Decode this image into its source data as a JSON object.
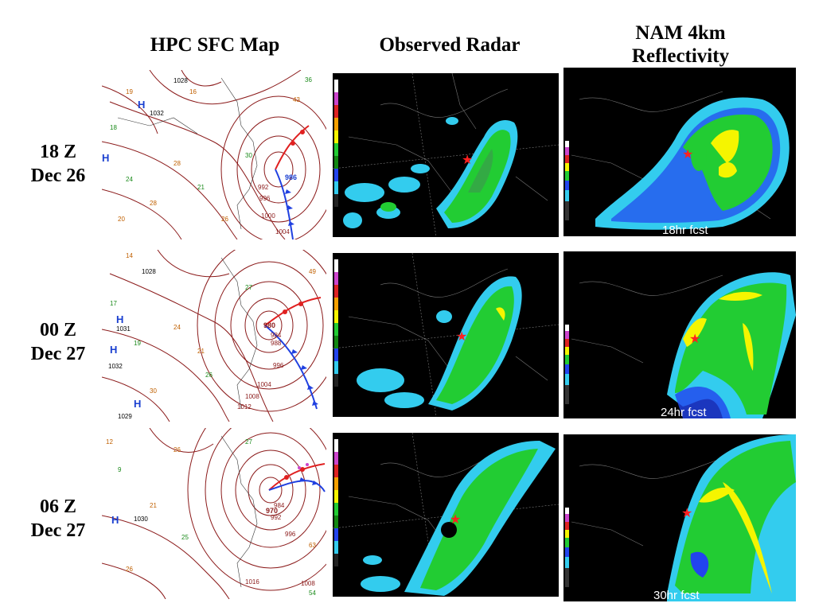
{
  "headers": {
    "sfc": "HPC SFC Map",
    "radar": "Observed Radar",
    "nam_line1": "NAM 4km",
    "nam_line2": "Reflectivity"
  },
  "rows": [
    {
      "time": "18 Z",
      "date": "Dec 26",
      "fcst": "18hr fcst",
      "sfc": {
        "low_pressure": "986",
        "isobars": [
          "992",
          "996",
          "1000",
          "1004"
        ],
        "highs": [
          "1028",
          "1032"
        ]
      }
    },
    {
      "time": "00 Z",
      "date": "Dec 27",
      "fcst": "24hr fcst",
      "sfc": {
        "low_pressure": "980",
        "isobars": [
          "984",
          "988",
          "996",
          "1004",
          "1008",
          "1012"
        ],
        "highs": [
          "1028",
          "1031",
          "1032",
          "1029"
        ]
      }
    },
    {
      "time": "06 Z",
      "date": "Dec 27",
      "fcst": "30hr fcst",
      "sfc": {
        "low_pressure": "970",
        "isobars": [
          "984",
          "992",
          "996",
          "1008",
          "1016"
        ],
        "highs": [
          "1030"
        ]
      }
    }
  ],
  "colors": {
    "isobar": "#8b1a1a",
    "front_warm": "#e02020",
    "front_cold": "#2040e0",
    "radar_green": "#22cc33",
    "radar_cyan": "#33ccee",
    "radar_yellow": "#f5f500",
    "storm_marker": "#ff2020"
  },
  "icons": {
    "storm_center": "red-star-icon",
    "high_pressure": "H-letter"
  }
}
